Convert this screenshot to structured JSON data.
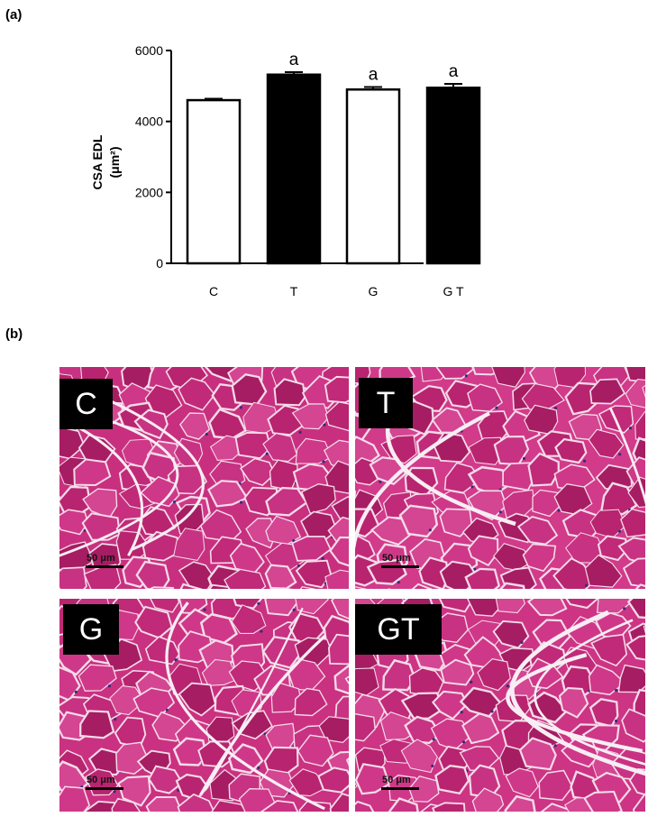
{
  "panel_a_label": "(a)",
  "panel_b_label": "(b)",
  "chart_data": {
    "type": "bar",
    "categories": [
      "C",
      "T",
      "G",
      "G T"
    ],
    "values": [
      4600,
      5320,
      4900,
      4950
    ],
    "errors": [
      40,
      70,
      70,
      110
    ],
    "bar_colors": [
      "#ffffff",
      "#000000",
      "#ffffff",
      "#000000"
    ],
    "annotations": [
      "",
      "a",
      "a",
      "a"
    ],
    "ylabel_line1": "CSA EDL",
    "ylabel_line2": "(μm²)",
    "ylim": [
      0,
      6000
    ],
    "yticks": [
      0,
      2000,
      4000,
      6000
    ],
    "ytick_labels": [
      "0",
      "2000",
      "4000",
      "6000"
    ],
    "grid": false,
    "legend": "none"
  },
  "micrographs": [
    {
      "label": "C",
      "scale": "50 μm",
      "color": "#c8307f"
    },
    {
      "label": "T",
      "scale": "50 μm",
      "color": "#d23a8a"
    },
    {
      "label": "G",
      "scale": "50 μm",
      "color": "#ca3180"
    },
    {
      "label": "GT",
      "scale": "50 μm",
      "color": "#cd3484"
    }
  ]
}
